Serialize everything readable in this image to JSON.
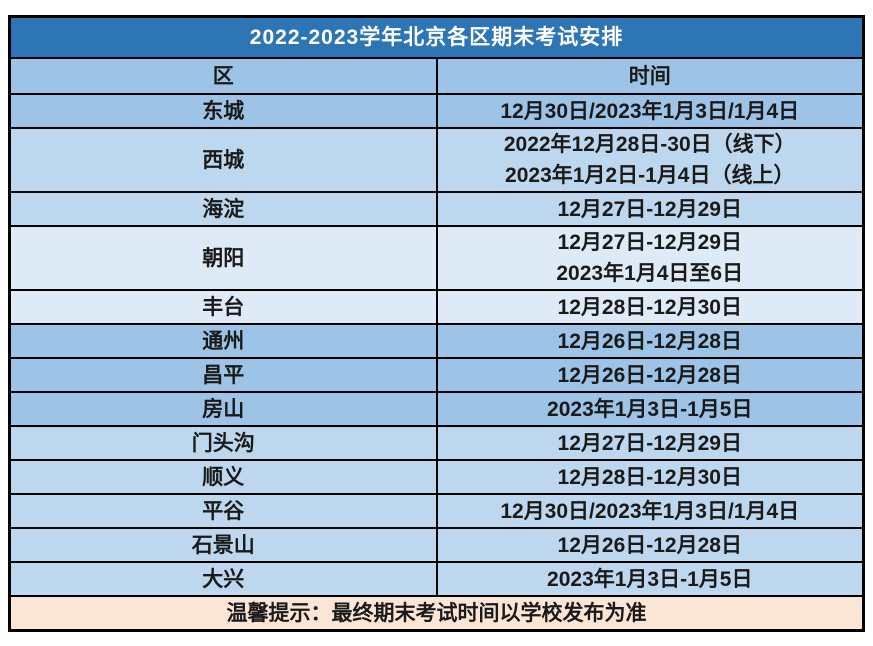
{
  "table": {
    "title": "2022-2023学年北京各区期末考试安排",
    "columns": [
      "区",
      "时间"
    ],
    "rows": [
      {
        "region": "东城",
        "times": [
          "12月30日/2023年1月3日/1月4日"
        ],
        "tone": "medium"
      },
      {
        "region": "西城",
        "times": [
          "2022年12月28日-30日（线下）",
          "2023年1月2日-1月4日（线上）"
        ],
        "tone": "light"
      },
      {
        "region": "海淀",
        "times": [
          "12月27日-12月29日"
        ],
        "tone": "light"
      },
      {
        "region": "朝阳",
        "times": [
          "12月27日-12月29日",
          "2023年1月4日至6日"
        ],
        "tone": "lightest"
      },
      {
        "region": "丰台",
        "times": [
          "12月28日-12月30日"
        ],
        "tone": "lightest"
      },
      {
        "region": "通州",
        "times": [
          "12月26日-12月28日"
        ],
        "tone": "medium"
      },
      {
        "region": "昌平",
        "times": [
          "12月26日-12月28日"
        ],
        "tone": "medium"
      },
      {
        "region": "房山",
        "times": [
          "2023年1月3日-1月5日"
        ],
        "tone": "medium"
      },
      {
        "region": "门头沟",
        "times": [
          "12月27日-12月29日"
        ],
        "tone": "light"
      },
      {
        "region": "顺义",
        "times": [
          "12月28日-12月30日"
        ],
        "tone": "light"
      },
      {
        "region": "平谷",
        "times": [
          "12月30日/2023年1月3日/1月4日"
        ],
        "tone": "light"
      },
      {
        "region": "石景山",
        "times": [
          "12月26日-12月28日"
        ],
        "tone": "light"
      },
      {
        "region": "大兴",
        "times": [
          "2023年1月3日-1月5日"
        ],
        "tone": "light"
      }
    ],
    "footer_note": "温馨提示：最终期末考试时间以学校发布为准"
  },
  "colors": {
    "title_bg": "#2E75B6",
    "title_text": "#FFFFFF",
    "header_bg": "#9DC3E6",
    "row_medium": "#9DC3E6",
    "row_light": "#BDD7EE",
    "row_lightest": "#DEEBF7",
    "footer_bg": "#FBE5D6",
    "border": "#000000",
    "body_text": "#1A1A1A"
  }
}
